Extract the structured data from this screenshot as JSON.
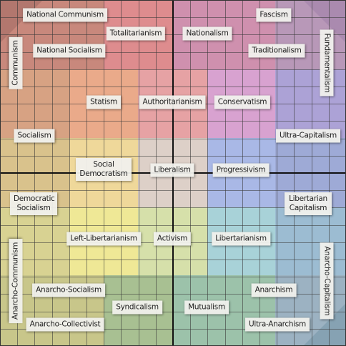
{
  "labels": {
    "national_communism": "National Communism",
    "totalitarianism": "Totalitarianism",
    "nationalism": "Nationalism",
    "fascism": "Fascism",
    "communism": "Communism",
    "national_socialism": "National Socialism",
    "traditionalism": "Traditionalism",
    "fundamentalism": "Fundamentalism",
    "statism": "Statism",
    "authoritarianism": "Authoritarianism",
    "conservatism": "Conservatism",
    "socialism": "Socialism",
    "ultra_capitalism": "Ultra-Capitalism",
    "social_democratism": "Social Democratism",
    "liberalism": "Liberalism",
    "progressivism": "Progressivism",
    "democratic_socialism": "Democratic Socialism",
    "libertarian_capitalism": "Libertarian Capitalism",
    "left_libertarianism": "Left-Libertarianism",
    "activism": "Activism",
    "libertarianism": "Libertarianism",
    "anarcho_communism": "Anarcho-Communism",
    "anarcho_capitalism": "Anarcho-Capitalism",
    "anarcho_socialism": "Anarcho-Socialism",
    "anarchism": "Anarchism",
    "syndicalism": "Syndicalism",
    "mutualism": "Mutualism",
    "anarcho_collectivist": "Anarcho-Collectivist",
    "ultra_anarchism": "Ultra-Anarchism"
  }
}
